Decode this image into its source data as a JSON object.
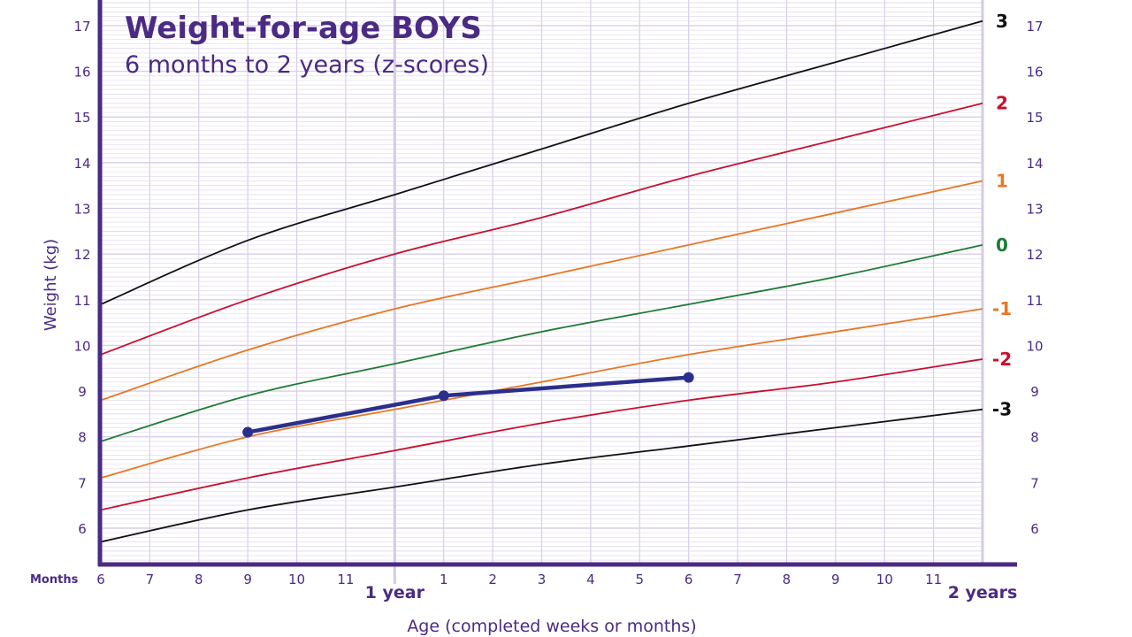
{
  "chart_data": {
    "type": "line",
    "title": "Weight-for-age BOYS",
    "subtitle": "6 months to 2 years (z-scores)",
    "xlabel": "Age (completed weeks or months)",
    "ylabel": "Weight (kg)",
    "x_unit_label": "Months",
    "x_range_months": [
      6,
      24
    ],
    "ylim": [
      5.2,
      17.5
    ],
    "y_ticks": [
      6,
      7,
      8,
      9,
      10,
      11,
      12,
      13,
      14,
      15,
      16,
      17
    ],
    "x_ticks": [
      {
        "month": 6,
        "label": "6"
      },
      {
        "month": 7,
        "label": "7"
      },
      {
        "month": 8,
        "label": "8"
      },
      {
        "month": 9,
        "label": "9"
      },
      {
        "month": 10,
        "label": "10"
      },
      {
        "month": 11,
        "label": "11"
      },
      {
        "month": 13,
        "label": "1"
      },
      {
        "month": 14,
        "label": "2"
      },
      {
        "month": 15,
        "label": "3"
      },
      {
        "month": 16,
        "label": "4"
      },
      {
        "month": 17,
        "label": "5"
      },
      {
        "month": 18,
        "label": "6"
      },
      {
        "month": 19,
        "label": "7"
      },
      {
        "month": 20,
        "label": "8"
      },
      {
        "month": 21,
        "label": "9"
      },
      {
        "month": 22,
        "label": "10"
      },
      {
        "month": 23,
        "label": "11"
      }
    ],
    "year_labels": [
      {
        "month": 12,
        "label": "1 year"
      },
      {
        "month": 24,
        "label": "2 years"
      }
    ],
    "grid": true,
    "x": [
      6,
      9,
      12,
      15,
      18,
      21,
      24
    ],
    "series": [
      {
        "name": "3",
        "color": "#111111",
        "values": [
          10.9,
          12.3,
          13.3,
          14.3,
          15.3,
          16.2,
          17.1
        ]
      },
      {
        "name": "2",
        "color": "#c8102e",
        "values": [
          9.8,
          11.0,
          12.0,
          12.8,
          13.7,
          14.5,
          15.3
        ]
      },
      {
        "name": "1",
        "color": "#e87722",
        "values": [
          8.8,
          9.9,
          10.8,
          11.5,
          12.2,
          12.9,
          13.6
        ]
      },
      {
        "name": "0",
        "color": "#1e7b34",
        "values": [
          7.9,
          8.9,
          9.6,
          10.3,
          10.9,
          11.5,
          12.2
        ]
      },
      {
        "name": "-1",
        "color": "#e87722",
        "values": [
          7.1,
          8.0,
          8.6,
          9.2,
          9.8,
          10.3,
          10.8
        ]
      },
      {
        "name": "-2",
        "color": "#c8102e",
        "values": [
          6.4,
          7.1,
          7.7,
          8.3,
          8.8,
          9.2,
          9.7
        ]
      },
      {
        "name": "-3",
        "color": "#111111",
        "values": [
          5.7,
          6.4,
          6.9,
          7.4,
          7.8,
          8.2,
          8.6
        ]
      }
    ],
    "measurements": {
      "color": "#2b2f8c",
      "points": [
        {
          "month": 9,
          "weight": 8.1
        },
        {
          "month": 13,
          "weight": 8.9
        },
        {
          "month": 18,
          "weight": 9.3
        }
      ]
    },
    "colors": {
      "axis": "#4b2a84",
      "grid": "#e3dcef",
      "grid_major": "#d8cfe8"
    }
  }
}
